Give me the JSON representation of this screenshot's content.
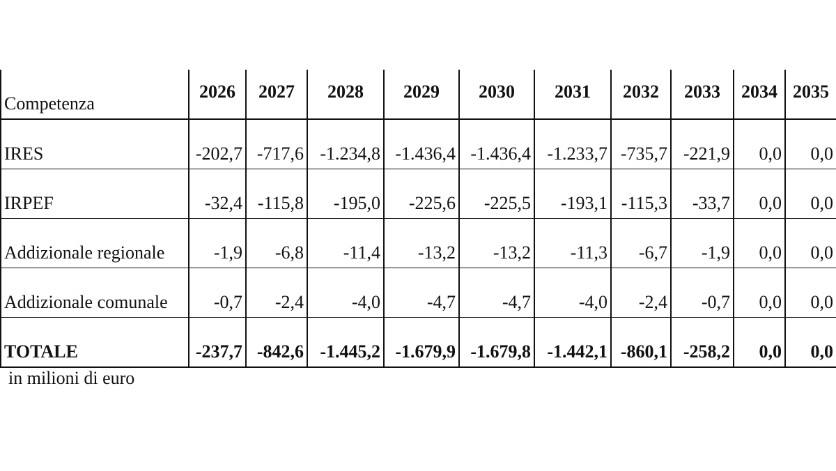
{
  "table": {
    "header": [
      "Competenza",
      "2026",
      "2027",
      "2028",
      "2029",
      "2030",
      "2031",
      "2032",
      "2033",
      "2034",
      "2035"
    ],
    "rows": [
      {
        "label": "IRES",
        "cells": [
          "-202,7",
          "-717,6",
          "-1.234,8",
          "-1.436,4",
          "-1.436,4",
          "-1.233,7",
          "-735,7",
          "-221,9",
          "0,0",
          "0,0"
        ]
      },
      {
        "label": "IRPEF",
        "cells": [
          "-32,4",
          "-115,8",
          "-195,0",
          "-225,6",
          "-225,5",
          "-193,1",
          "-115,3",
          "-33,7",
          "0,0",
          "0,0"
        ]
      },
      {
        "label": "Addizionale regionale",
        "cells": [
          "-1,9",
          "-6,8",
          "-11,4",
          "-13,2",
          "-13,2",
          "-11,3",
          "-6,7",
          "-1,9",
          "0,0",
          "0,0"
        ]
      },
      {
        "label": "Addizionale comunale",
        "cells": [
          "-0,7",
          "-2,4",
          "-4,0",
          "-4,7",
          "-4,7",
          "-4,0",
          "-2,4",
          "-0,7",
          "0,0",
          "0,0"
        ]
      },
      {
        "label": "TOTALE",
        "cells": [
          "-237,7",
          "-842,6",
          "-1.445,2",
          "-1.679,9",
          "-1.679,8",
          "-1.442,1",
          "-860,1",
          "-258,2",
          "0,0",
          "0,0"
        ]
      }
    ],
    "note": "in milioni di euro"
  }
}
